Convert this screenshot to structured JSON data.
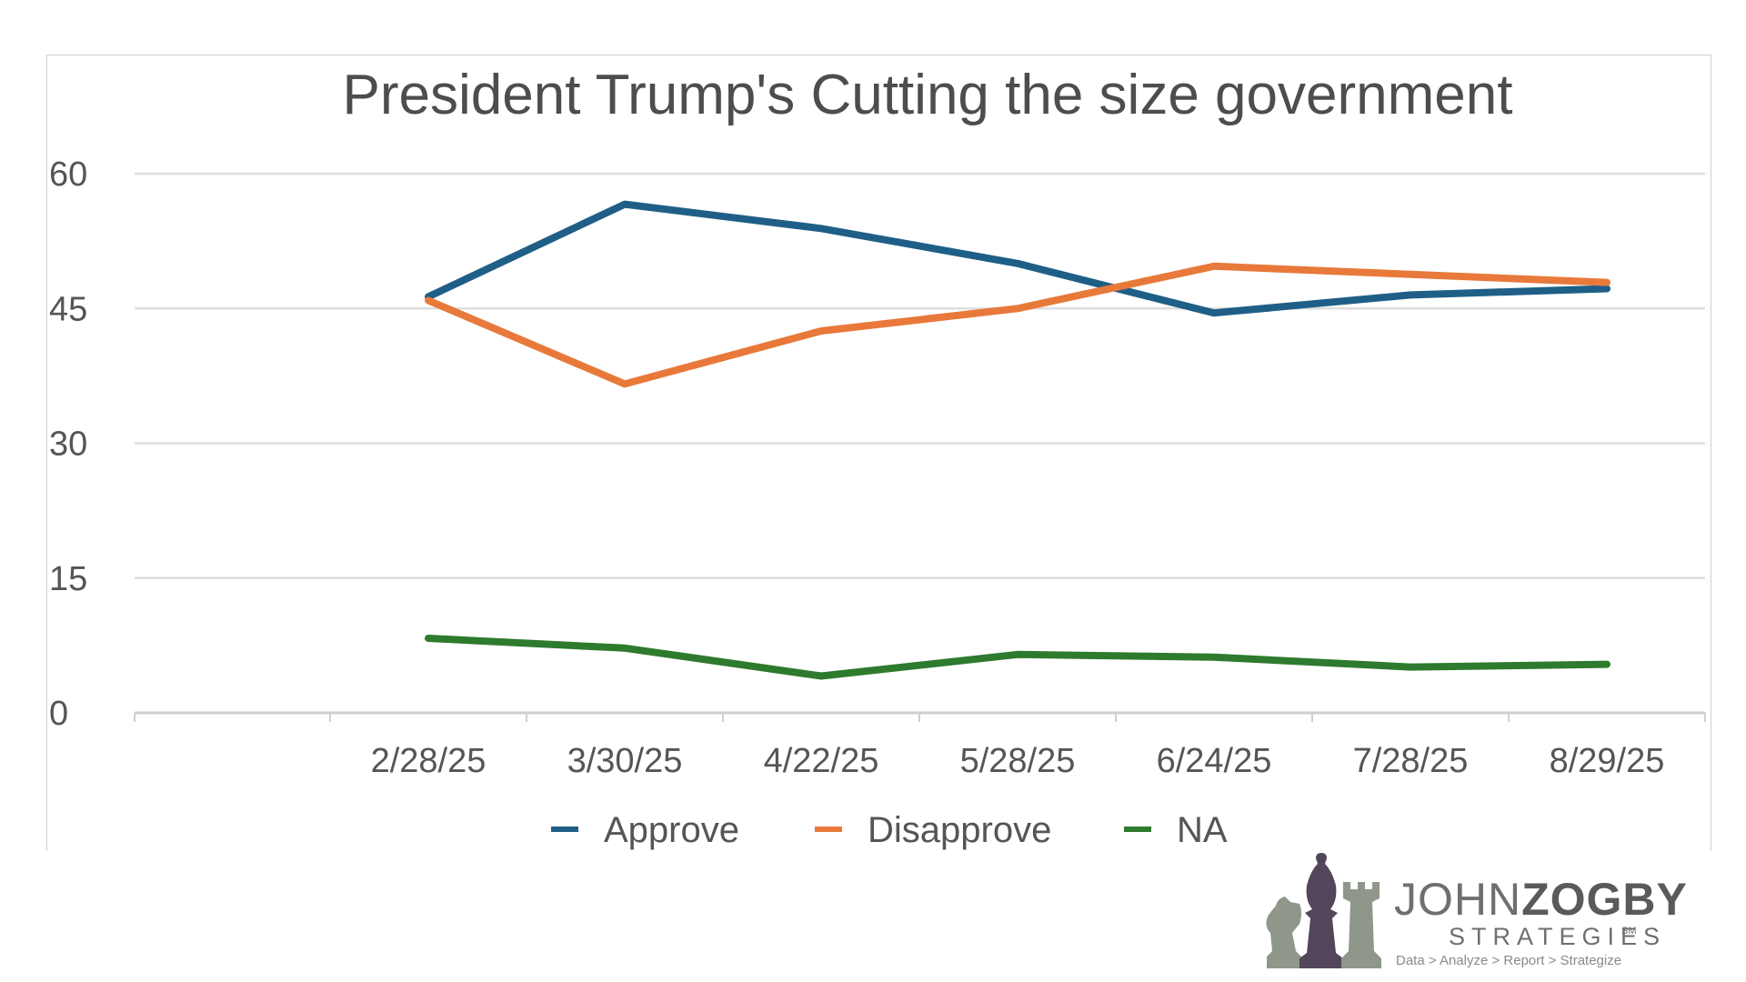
{
  "chart_data": {
    "type": "line",
    "title": "President Trump's Cutting the size government",
    "xlabel": "",
    "ylabel": "",
    "categories": [
      "2/28/25",
      "3/30/25",
      "4/22/25",
      "5/28/25",
      "6/24/25",
      "7/28/25",
      "8/29/25"
    ],
    "ylim": [
      0,
      60
    ],
    "yticks": [
      "0",
      "15",
      "30",
      "45",
      "60"
    ],
    "grid": true,
    "legend_position": "bottom",
    "series": [
      {
        "name": "Approve",
        "color": "#1f5f87",
        "values": [
          46.3,
          56.6,
          53.9,
          50.0,
          44.5,
          46.5,
          47.2
        ]
      },
      {
        "name": "Disapprove",
        "color": "#e8793a",
        "values": [
          45.9,
          36.6,
          42.5,
          45.0,
          49.7,
          48.8,
          47.9
        ]
      },
      {
        "name": "NA",
        "color": "#2e7a2e",
        "values": [
          8.3,
          7.2,
          4.1,
          6.5,
          6.2,
          5.1,
          5.4
        ]
      }
    ]
  },
  "logo": {
    "name_light": "JOHN",
    "name_bold": "ZOGBY",
    "sub": "STRATEGIES",
    "sm": "SM",
    "tagline": "Data > Analyze > Report > Strategize",
    "colors": {
      "knight": "#8f978a",
      "bishop": "#54465a",
      "rook": "#8f978a"
    }
  }
}
